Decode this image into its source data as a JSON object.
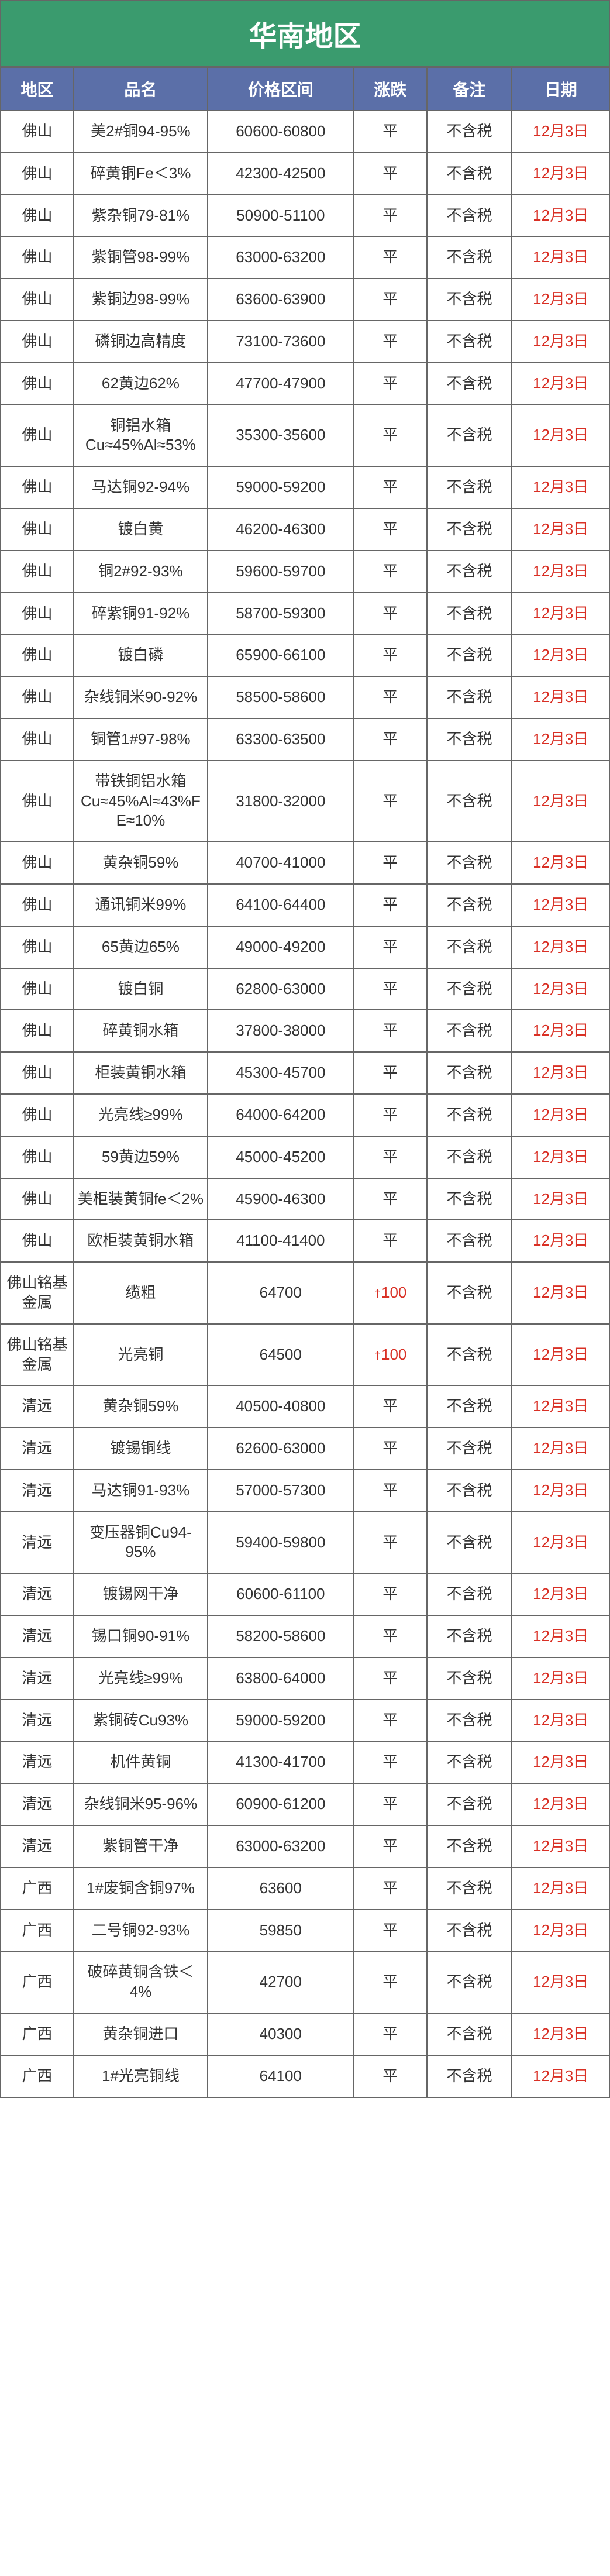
{
  "title": "华南地区",
  "colors": {
    "title_bg": "#3a9b6e",
    "header_bg": "#5b6fa8",
    "text": "#333333",
    "date_text": "#d93025",
    "up_text": "#d93025",
    "border": "#666666"
  },
  "columns": [
    "地区",
    "品名",
    "价格区间",
    "涨跌",
    "备注",
    "日期"
  ],
  "rows": [
    {
      "region": "佛山",
      "name": "美2#铜94-95%",
      "price": "60600-60800",
      "change": "平",
      "note": "不含税",
      "date": "12月3日"
    },
    {
      "region": "佛山",
      "name": "碎黄铜Fe＜3%",
      "price": "42300-42500",
      "change": "平",
      "note": "不含税",
      "date": "12月3日"
    },
    {
      "region": "佛山",
      "name": "紫杂铜79-81%",
      "price": "50900-51100",
      "change": "平",
      "note": "不含税",
      "date": "12月3日"
    },
    {
      "region": "佛山",
      "name": "紫铜管98-99%",
      "price": "63000-63200",
      "change": "平",
      "note": "不含税",
      "date": "12月3日"
    },
    {
      "region": "佛山",
      "name": "紫铜边98-99%",
      "price": "63600-63900",
      "change": "平",
      "note": "不含税",
      "date": "12月3日"
    },
    {
      "region": "佛山",
      "name": "磷铜边高精度",
      "price": "73100-73600",
      "change": "平",
      "note": "不含税",
      "date": "12月3日"
    },
    {
      "region": "佛山",
      "name": "62黄边62%",
      "price": "47700-47900",
      "change": "平",
      "note": "不含税",
      "date": "12月3日"
    },
    {
      "region": "佛山",
      "name": "铜铝水箱Cu≈45%Al≈53%",
      "price": "35300-35600",
      "change": "平",
      "note": "不含税",
      "date": "12月3日"
    },
    {
      "region": "佛山",
      "name": "马达铜92-94%",
      "price": "59000-59200",
      "change": "平",
      "note": "不含税",
      "date": "12月3日"
    },
    {
      "region": "佛山",
      "name": "镀白黄",
      "price": "46200-46300",
      "change": "平",
      "note": "不含税",
      "date": "12月3日"
    },
    {
      "region": "佛山",
      "name": "铜2#92-93%",
      "price": "59600-59700",
      "change": "平",
      "note": "不含税",
      "date": "12月3日"
    },
    {
      "region": "佛山",
      "name": "碎紫铜91-92%",
      "price": "58700-59300",
      "change": "平",
      "note": "不含税",
      "date": "12月3日"
    },
    {
      "region": "佛山",
      "name": "镀白磷",
      "price": "65900-66100",
      "change": "平",
      "note": "不含税",
      "date": "12月3日"
    },
    {
      "region": "佛山",
      "name": "杂线铜米90-92%",
      "price": "58500-58600",
      "change": "平",
      "note": "不含税",
      "date": "12月3日"
    },
    {
      "region": "佛山",
      "name": "铜管1#97-98%",
      "price": "63300-63500",
      "change": "平",
      "note": "不含税",
      "date": "12月3日"
    },
    {
      "region": "佛山",
      "name": "带铁铜铝水箱Cu≈45%Al≈43%FE≈10%",
      "price": "31800-32000",
      "change": "平",
      "note": "不含税",
      "date": "12月3日"
    },
    {
      "region": "佛山",
      "name": "黄杂铜59%",
      "price": "40700-41000",
      "change": "平",
      "note": "不含税",
      "date": "12月3日"
    },
    {
      "region": "佛山",
      "name": "通讯铜米99%",
      "price": "64100-64400",
      "change": "平",
      "note": "不含税",
      "date": "12月3日"
    },
    {
      "region": "佛山",
      "name": "65黄边65%",
      "price": "49000-49200",
      "change": "平",
      "note": "不含税",
      "date": "12月3日"
    },
    {
      "region": "佛山",
      "name": "镀白铜",
      "price": "62800-63000",
      "change": "平",
      "note": "不含税",
      "date": "12月3日"
    },
    {
      "region": "佛山",
      "name": "碎黄铜水箱",
      "price": "37800-38000",
      "change": "平",
      "note": "不含税",
      "date": "12月3日"
    },
    {
      "region": "佛山",
      "name": "柜装黄铜水箱",
      "price": "45300-45700",
      "change": "平",
      "note": "不含税",
      "date": "12月3日"
    },
    {
      "region": "佛山",
      "name": "光亮线≥99%",
      "price": "64000-64200",
      "change": "平",
      "note": "不含税",
      "date": "12月3日"
    },
    {
      "region": "佛山",
      "name": "59黄边59%",
      "price": "45000-45200",
      "change": "平",
      "note": "不含税",
      "date": "12月3日"
    },
    {
      "region": "佛山",
      "name": "美柜装黄铜fe＜2%",
      "price": "45900-46300",
      "change": "平",
      "note": "不含税",
      "date": "12月3日"
    },
    {
      "region": "佛山",
      "name": "欧柜装黄铜水箱",
      "price": "41100-41400",
      "change": "平",
      "note": "不含税",
      "date": "12月3日"
    },
    {
      "region": "佛山铭基金属",
      "name": "缆粗",
      "price": "64700",
      "change": "↑100",
      "change_up": true,
      "note": "不含税",
      "date": "12月3日"
    },
    {
      "region": "佛山铭基金属",
      "name": "光亮铜",
      "price": "64500",
      "change": "↑100",
      "change_up": true,
      "note": "不含税",
      "date": "12月3日"
    },
    {
      "region": "清远",
      "name": "黄杂铜59%",
      "price": "40500-40800",
      "change": "平",
      "note": "不含税",
      "date": "12月3日"
    },
    {
      "region": "清远",
      "name": "镀锡铜线",
      "price": "62600-63000",
      "change": "平",
      "note": "不含税",
      "date": "12月3日"
    },
    {
      "region": "清远",
      "name": "马达铜91-93%",
      "price": "57000-57300",
      "change": "平",
      "note": "不含税",
      "date": "12月3日"
    },
    {
      "region": "清远",
      "name": "变压器铜Cu94-95%",
      "price": "59400-59800",
      "change": "平",
      "note": "不含税",
      "date": "12月3日"
    },
    {
      "region": "清远",
      "name": "镀锡网干净",
      "price": "60600-61100",
      "change": "平",
      "note": "不含税",
      "date": "12月3日"
    },
    {
      "region": "清远",
      "name": "锡口铜90-91%",
      "price": "58200-58600",
      "change": "平",
      "note": "不含税",
      "date": "12月3日"
    },
    {
      "region": "清远",
      "name": "光亮线≥99%",
      "price": "63800-64000",
      "change": "平",
      "note": "不含税",
      "date": "12月3日"
    },
    {
      "region": "清远",
      "name": "紫铜砖Cu93%",
      "price": "59000-59200",
      "change": "平",
      "note": "不含税",
      "date": "12月3日"
    },
    {
      "region": "清远",
      "name": "机件黄铜",
      "price": "41300-41700",
      "change": "平",
      "note": "不含税",
      "date": "12月3日"
    },
    {
      "region": "清远",
      "name": "杂线铜米95-96%",
      "price": "60900-61200",
      "change": "平",
      "note": "不含税",
      "date": "12月3日"
    },
    {
      "region": "清远",
      "name": "紫铜管干净",
      "price": "63000-63200",
      "change": "平",
      "note": "不含税",
      "date": "12月3日"
    },
    {
      "region": "广西",
      "name": "1#废铜含铜97%",
      "price": "63600",
      "change": "平",
      "note": "不含税",
      "date": "12月3日"
    },
    {
      "region": "广西",
      "name": "二号铜92-93%",
      "price": "59850",
      "change": "平",
      "note": "不含税",
      "date": "12月3日"
    },
    {
      "region": "广西",
      "name": "破碎黄铜含铁＜4%",
      "price": "42700",
      "change": "平",
      "note": "不含税",
      "date": "12月3日"
    },
    {
      "region": "广西",
      "name": "黄杂铜进口",
      "price": "40300",
      "change": "平",
      "note": "不含税",
      "date": "12月3日"
    },
    {
      "region": "广西",
      "name": "1#光亮铜线",
      "price": "64100",
      "change": "平",
      "note": "不含税",
      "date": "12月3日"
    }
  ]
}
